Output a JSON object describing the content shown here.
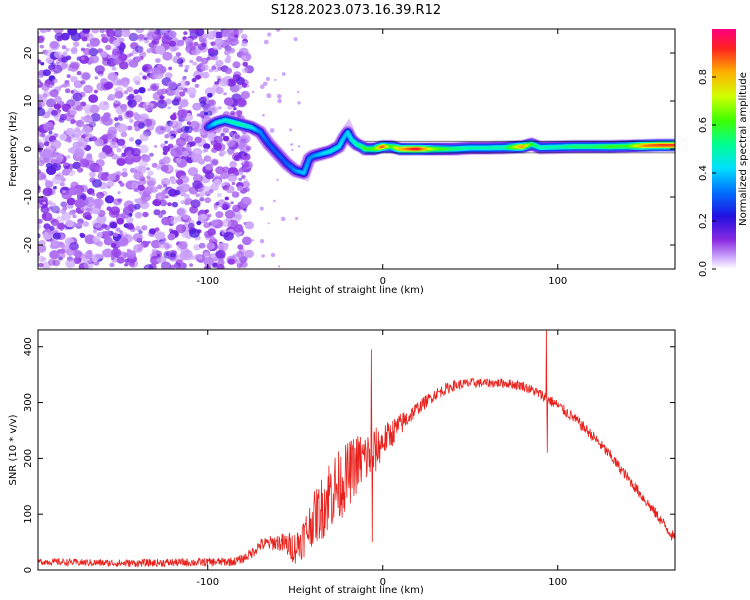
{
  "title": "S128.2023.073.16.39.R12",
  "colorbar": {
    "label": "Normalized spectral amplitude",
    "ticks": [
      "0.0",
      "0.2",
      "0.4",
      "0.6",
      "0.8"
    ],
    "tick_values": [
      0.0,
      0.2,
      0.4,
      0.6,
      0.8
    ],
    "range": [
      0,
      1
    ]
  },
  "chart_data": [
    {
      "type": "heatmap",
      "xlabel": "Height of straight line (km)",
      "ylabel": "Frequency (Hz)",
      "xlim": [
        -197,
        167
      ],
      "ylim": [
        -25,
        25
      ],
      "xticks": [
        -100,
        0,
        100
      ],
      "xtick_labels": [
        "-100",
        "0",
        "100"
      ],
      "yticks": [
        -20,
        -10,
        0,
        10,
        20
      ],
      "ytick_labels": [
        "-20",
        "-10",
        "0",
        "10",
        "20"
      ],
      "noise_region_x": [
        -197,
        -83
      ],
      "noise_amplitude": 0.15,
      "signal_track": {
        "x": [
          -100,
          -95,
          -90,
          -85,
          -80,
          -75,
          -70,
          -65,
          -60,
          -55,
          -50,
          -45,
          -42,
          -40,
          -35,
          -30,
          -25,
          -22,
          -20,
          -18,
          -15,
          -12,
          -10,
          -5,
          0,
          5,
          10,
          20,
          30,
          40,
          50,
          60,
          70,
          80,
          85,
          90,
          100,
          110,
          120,
          130,
          140,
          150,
          160,
          167
        ],
        "freq": [
          4.5,
          5.5,
          6,
          5.5,
          5,
          4.5,
          3.5,
          1,
          -1,
          -3,
          -4.5,
          -5,
          -2,
          -1.5,
          -1,
          -0.5,
          0.5,
          2.5,
          3.5,
          2,
          1,
          0.5,
          0,
          0,
          0.5,
          0.5,
          0,
          0,
          0,
          0,
          0.2,
          0.2,
          0.3,
          0.5,
          1,
          0.3,
          0.4,
          0.5,
          0.5,
          0.5,
          0.6,
          0.7,
          0.8,
          0.8
        ],
        "amplitude": [
          0.3,
          0.45,
          0.45,
          0.5,
          0.5,
          0.45,
          0.35,
          0.3,
          0.3,
          0.3,
          0.35,
          0.4,
          0.35,
          0.35,
          0.4,
          0.45,
          0.45,
          0.4,
          0.4,
          0.45,
          0.5,
          0.55,
          0.6,
          0.6,
          0.9,
          0.6,
          0.8,
          0.95,
          0.65,
          0.55,
          0.5,
          0.5,
          0.5,
          0.85,
          0.6,
          0.5,
          0.5,
          0.55,
          0.55,
          0.6,
          0.6,
          0.85,
          0.9,
          0.9
        ]
      }
    },
    {
      "type": "line",
      "xlabel": "Height of straight line (km)",
      "ylabel": "SNR (10 * v/v)",
      "xlim": [
        -197,
        167
      ],
      "ylim": [
        0,
        430
      ],
      "xticks": [
        -100,
        0,
        100
      ],
      "xtick_labels": [
        "-100",
        "0",
        "100"
      ],
      "yticks": [
        0,
        100,
        200,
        300,
        400
      ],
      "ytick_labels": [
        "0",
        "100",
        "200",
        "300",
        "400"
      ],
      "color": "#e8211c",
      "envelope": {
        "x": [
          -197,
          -150,
          -100,
          -85,
          -80,
          -75,
          -70,
          -60,
          -50,
          -45,
          -40,
          -35,
          -30,
          -25,
          -20,
          -15,
          -10,
          -5,
          0,
          10,
          20,
          30,
          40,
          50,
          60,
          70,
          80,
          90,
          100,
          110,
          120,
          130,
          140,
          150,
          160,
          167
        ],
        "y": [
          15,
          12,
          14,
          15,
          20,
          30,
          45,
          50,
          40,
          60,
          90,
          110,
          140,
          150,
          170,
          190,
          200,
          210,
          230,
          260,
          290,
          315,
          330,
          335,
          335,
          335,
          330,
          315,
          295,
          270,
          240,
          205,
          165,
          125,
          85,
          55
        ]
      },
      "noise": {
        "x": [
          -197,
          -80,
          -60,
          -40,
          -30,
          -20,
          -5,
          0,
          20,
          60,
          100,
          167
        ],
        "amplitude": [
          6,
          8,
          15,
          45,
          70,
          60,
          45,
          30,
          12,
          8,
          10,
          10
        ]
      },
      "spikes": [
        {
          "x": -6.5,
          "y": 395
        },
        {
          "x": -6,
          "y": 50
        },
        {
          "x": 93.5,
          "y": 430
        },
        {
          "x": 94,
          "y": 210
        }
      ]
    }
  ]
}
